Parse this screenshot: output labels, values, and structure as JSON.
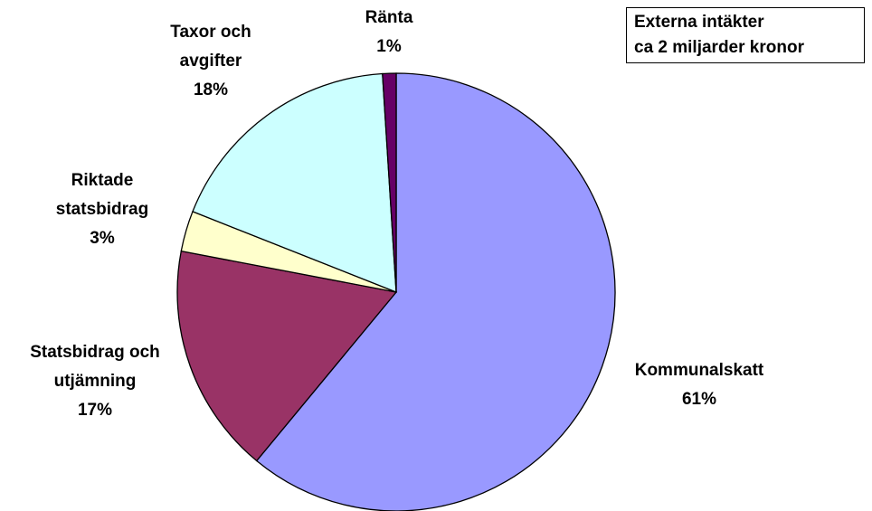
{
  "chart_data": {
    "type": "pie",
    "annotation": [
      "Externa intäkter",
      "ca 2 miljarder kronor"
    ],
    "categories": [
      "Kommunalskatt",
      "Statsbidrag och utjämning",
      "Riktade statsbidrag",
      "Taxor och avgifter",
      "Ränta"
    ],
    "values": [
      61,
      17,
      3,
      18,
      1
    ],
    "value_labels": [
      "61%",
      "17%",
      "3%",
      "18%",
      "1%"
    ],
    "colors": [
      "#9999ff",
      "#993366",
      "#ffffcc",
      "#ccffff",
      "#660066"
    ]
  }
}
